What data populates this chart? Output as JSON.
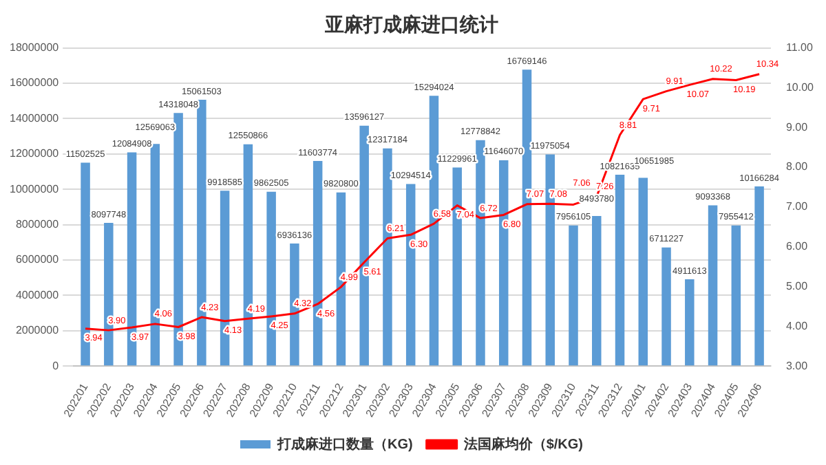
{
  "chart_data": {
    "type": "bar",
    "title": "亚麻打成麻进口统计",
    "categories": [
      "202201",
      "202202",
      "202203",
      "202204",
      "202205",
      "202206",
      "202207",
      "202208",
      "202209",
      "202210",
      "202211",
      "202212",
      "202301",
      "202302",
      "202303",
      "202304",
      "202305",
      "202306",
      "202307",
      "202308",
      "202309",
      "202310",
      "202311",
      "202312",
      "202401",
      "202402",
      "202403",
      "202404",
      "202405",
      "202406"
    ],
    "series": [
      {
        "name": "打成麻进口数量（KG)",
        "type": "bar",
        "color": "#5b9bd5",
        "values": [
          11502525,
          8097748,
          12084908,
          12569063,
          14318048,
          15061503,
          9918585,
          12550866,
          9862505,
          6936136,
          11603774,
          9820800,
          13596127,
          12317184,
          10294514,
          15294024,
          11229961,
          12778842,
          11646070,
          16769146,
          11975054,
          7956105,
          8493780,
          10821635,
          10651985,
          6711227,
          4911613,
          9093368,
          7955412,
          10166284
        ]
      },
      {
        "name": "法国麻均价（$/KG)",
        "type": "line",
        "axis": "y2",
        "color": "#ff0000",
        "values": [
          3.94,
          3.9,
          3.97,
          4.06,
          3.98,
          4.23,
          4.13,
          4.19,
          4.25,
          4.32,
          4.56,
          4.99,
          5.61,
          6.21,
          6.3,
          6.58,
          7.04,
          6.72,
          6.8,
          7.07,
          7.08,
          7.06,
          7.26,
          8.81,
          9.71,
          9.91,
          10.07,
          10.22,
          10.19,
          10.34
        ],
        "value_labels": [
          "3.94",
          "3.90",
          "3.97",
          "4.06",
          "3.98",
          "4.23",
          "4.13",
          "4.19",
          "4.25",
          "4.32",
          "4.56",
          "4.99",
          "5.61",
          "6.21",
          "6.30",
          "6.58",
          "7.04",
          "6.72",
          "6.80",
          "7.07",
          "7.08",
          "7.06",
          "7.26",
          "8.81",
          "9.71",
          "9.91",
          "10.07",
          "10.22",
          "10.19",
          "10.34"
        ]
      }
    ],
    "ylim": [
      0,
      18000000
    ],
    "yticks": [
      0,
      2000000,
      4000000,
      6000000,
      8000000,
      10000000,
      12000000,
      14000000,
      16000000,
      18000000
    ],
    "y2lim": [
      3,
      11
    ],
    "y2ticks": [
      {
        "value": 3,
        "label": "3.00"
      },
      {
        "value": 4,
        "label": "4.00"
      },
      {
        "value": 5,
        "label": "5.00"
      },
      {
        "value": 6,
        "label": "6.00"
      },
      {
        "value": 7,
        "label": "7.00"
      },
      {
        "value": 8,
        "label": "8.00"
      },
      {
        "value": 9,
        "label": "9.00"
      },
      {
        "value": 10,
        "label": "10.00"
      },
      {
        "value": 11,
        "label": "11.00"
      }
    ],
    "grid": "y",
    "legend": "bottom",
    "data_labels": true,
    "marker": "none"
  }
}
